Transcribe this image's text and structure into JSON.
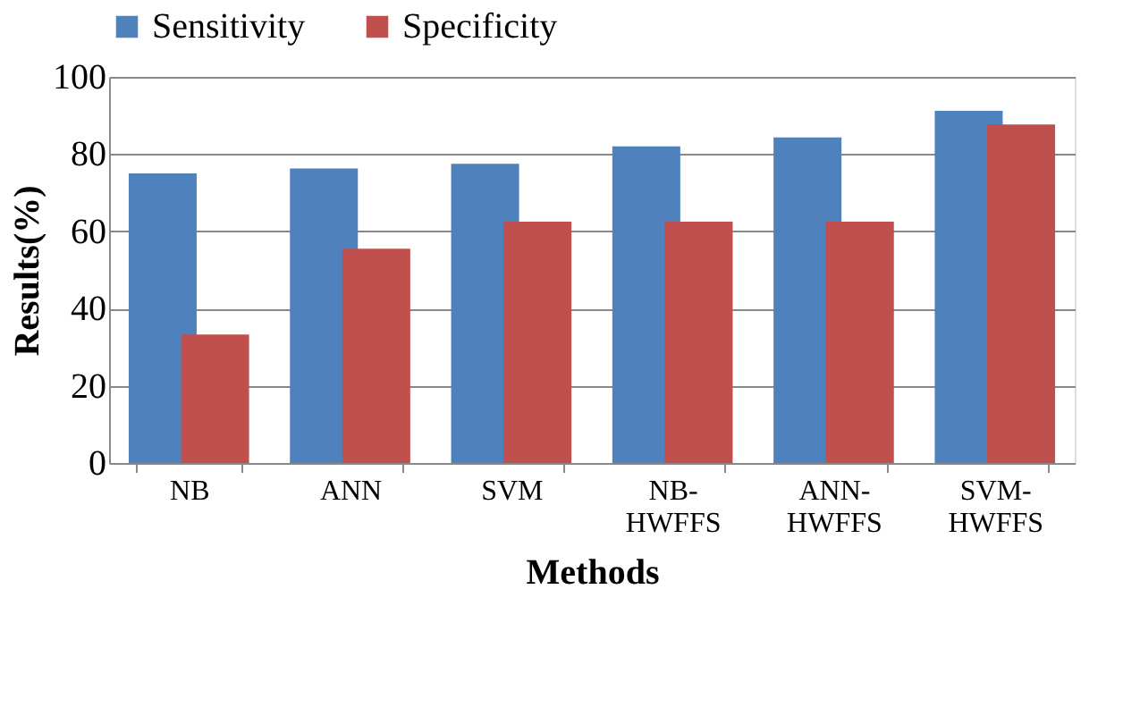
{
  "chart_data": {
    "type": "bar",
    "xlabel": "Methods",
    "ylabel": "Results(%)",
    "categories": [
      "NB",
      "ANN",
      "SVM",
      "NB-HWFFS",
      "ANN-HWFFS",
      "SVM-HWFFS"
    ],
    "series": [
      {
        "name": "Sensitivity",
        "color": "#4f81bd",
        "values": [
          75,
          76.3,
          77.5,
          82,
          84.3,
          91.2
        ]
      },
      {
        "name": "Specificity",
        "color": "#c0504d",
        "values": [
          33.3,
          55.5,
          62.5,
          62.5,
          62.5,
          87.7
        ]
      }
    ],
    "ylim": [
      0,
      100
    ],
    "yticks": [
      0,
      20,
      40,
      60,
      80,
      100
    ],
    "grid": "y",
    "legend": "top"
  }
}
